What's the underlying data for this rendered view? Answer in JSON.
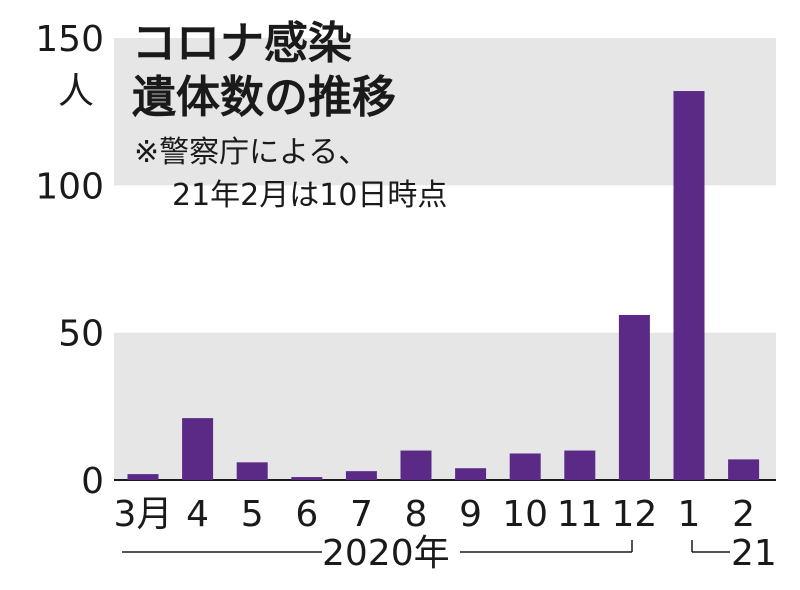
{
  "chart_data": {
    "type": "bar",
    "title_lines": [
      "コロナ感染",
      "遺体数の推移"
    ],
    "note_lines": [
      "※警察庁による、",
      "21年2月は10日時点"
    ],
    "y_unit": "人",
    "ylim": [
      0,
      150
    ],
    "y_ticks": [
      0,
      50,
      100,
      150
    ],
    "categories": [
      "3月",
      "4",
      "5",
      "6",
      "7",
      "8",
      "9",
      "10",
      "11",
      "12",
      "1",
      "2"
    ],
    "values": [
      2,
      21,
      6,
      1,
      3,
      10,
      4,
      9,
      10,
      56,
      132,
      7
    ],
    "period_labels": [
      "2020年",
      "21"
    ],
    "bar_color": "#5b2a86",
    "band_color": "#e6e6e6",
    "grid": "alternating horizontal bands"
  }
}
